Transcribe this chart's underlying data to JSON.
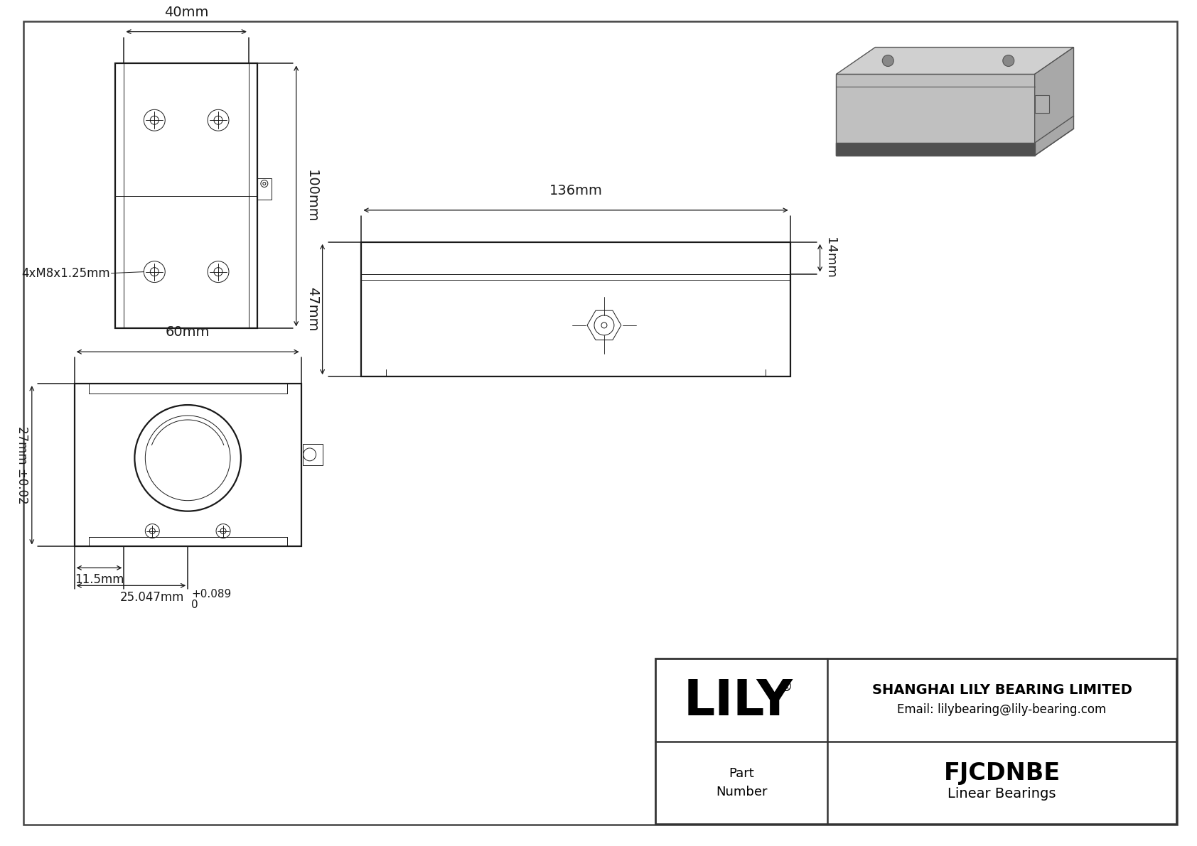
{
  "bg_color": "#ffffff",
  "line_color": "#1a1a1a",
  "dim_color": "#1a1a1a",
  "border_color": "#333333",
  "title": "FJCDNBE",
  "subtitle": "Linear Bearings",
  "company": "SHANGHAI LILY BEARING LIMITED",
  "email": "Email: lilybearing@lily-bearing.com",
  "part_label": "Part\nNumber",
  "logo": "LILY",
  "logo_sup": "®",
  "dim_40mm": "40mm",
  "dim_100mm": "100mm",
  "dim_60mm": "60mm",
  "dim_27mm": "27mm ±0.02",
  "dim_11_5mm": "11.5mm",
  "dim_25_047mm": "25.047mm",
  "dim_tol_top": "+0.089",
  "dim_tol_bot": "0",
  "dim_136mm": "136mm",
  "dim_47mm": "47mm",
  "dim_14mm": "14mm",
  "thread_label": "4xM8x1.25mm",
  "lw_thick": 1.6,
  "lw_mid": 1.1,
  "lw_thin": 0.7,
  "lw_dim": 0.9
}
